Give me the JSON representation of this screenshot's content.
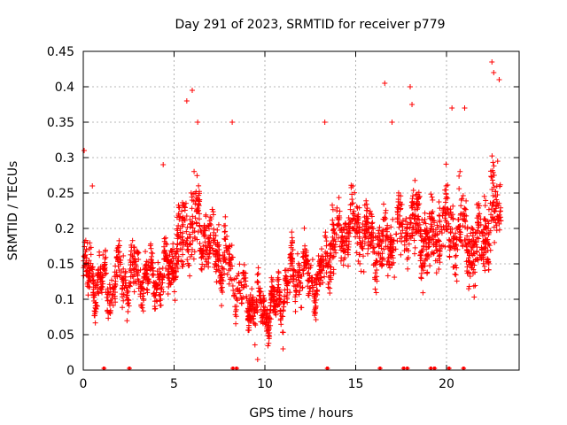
{
  "chart_data": {
    "type": "scatter",
    "title": "Day 291 of 2023, SRMTID for receiver p779",
    "xlabel": "GPS time / hours",
    "ylabel": "SRMTID / TECUs",
    "xlim": [
      0,
      24
    ],
    "ylim": [
      0,
      0.45
    ],
    "x_ticks": [
      0,
      5,
      10,
      15,
      20
    ],
    "x_tick_labels": [
      "0",
      "5",
      "10",
      "15",
      "20"
    ],
    "y_ticks": [
      0,
      0.05,
      0.1,
      0.15,
      0.2,
      0.25,
      0.3,
      0.35,
      0.4,
      0.45
    ],
    "y_tick_labels": [
      "0",
      "0.05",
      "0.1",
      "0.15",
      "0.2",
      "0.25",
      "0.3",
      "0.35",
      "0.4",
      "0.45"
    ],
    "grid": true,
    "marker": "plus",
    "color": "#ff0000",
    "series": [
      {
        "name": "SRMTID",
        "trend_x": [
          0,
          0.5,
          1,
          1.5,
          2,
          2.5,
          3,
          3.5,
          4,
          4.5,
          5,
          5.5,
          6,
          6.5,
          7,
          7.5,
          8,
          8.5,
          9,
          9.5,
          10,
          10.5,
          11,
          11.5,
          12,
          12.5,
          13,
          13.5,
          14,
          14.5,
          15,
          15.5,
          16,
          16.5,
          17,
          17.5,
          18,
          18.5,
          19,
          19.5,
          20,
          20.5,
          21,
          21.5,
          22,
          22.5,
          23
        ],
        "trend_y": [
          0.14,
          0.13,
          0.12,
          0.12,
          0.13,
          0.13,
          0.14,
          0.13,
          0.13,
          0.13,
          0.16,
          0.19,
          0.21,
          0.2,
          0.18,
          0.16,
          0.15,
          0.12,
          0.1,
          0.09,
          0.085,
          0.09,
          0.11,
          0.13,
          0.14,
          0.13,
          0.12,
          0.17,
          0.19,
          0.2,
          0.21,
          0.19,
          0.18,
          0.17,
          0.19,
          0.2,
          0.21,
          0.2,
          0.17,
          0.19,
          0.21,
          0.2,
          0.19,
          0.17,
          0.18,
          0.22,
          0.24
        ],
        "spread": [
          0.035,
          0.04,
          0.035,
          0.035,
          0.035,
          0.035,
          0.04,
          0.035,
          0.035,
          0.035,
          0.04,
          0.06,
          0.065,
          0.05,
          0.045,
          0.045,
          0.04,
          0.035,
          0.03,
          0.03,
          0.03,
          0.03,
          0.03,
          0.035,
          0.035,
          0.035,
          0.035,
          0.045,
          0.045,
          0.045,
          0.05,
          0.045,
          0.045,
          0.045,
          0.05,
          0.05,
          0.05,
          0.05,
          0.05,
          0.055,
          0.06,
          0.06,
          0.055,
          0.05,
          0.055,
          0.07,
          0.07
        ],
        "points_per_hour": 110,
        "outliers": [
          [
            0.05,
            0.31
          ],
          [
            0.5,
            0.26
          ],
          [
            4.4,
            0.29
          ],
          [
            5.7,
            0.38
          ],
          [
            6.0,
            0.395
          ],
          [
            6.3,
            0.35
          ],
          [
            8.2,
            0.35
          ],
          [
            13.3,
            0.35
          ],
          [
            16.6,
            0.405
          ],
          [
            17.0,
            0.35
          ],
          [
            18.0,
            0.4
          ],
          [
            18.1,
            0.375
          ],
          [
            20.3,
            0.37
          ],
          [
            21.0,
            0.37
          ],
          [
            22.5,
            0.435
          ],
          [
            22.6,
            0.42
          ],
          [
            22.9,
            0.41
          ],
          [
            9.6,
            0.015
          ],
          [
            11.0,
            0.03
          ]
        ],
        "zero_points_x": [
          1.1,
          2.5,
          8.2,
          8.4,
          13.4,
          16.3,
          17.6,
          17.8,
          19.1,
          19.3,
          20.1,
          20.9
        ]
      }
    ]
  }
}
